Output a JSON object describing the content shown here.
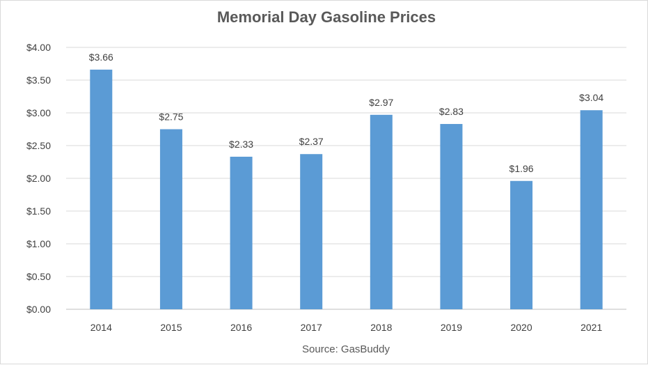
{
  "chart_data": {
    "type": "bar",
    "title": "Memorial Day Gasoline Prices",
    "source": "Source: GasBuddy",
    "categories": [
      "2014",
      "2015",
      "2016",
      "2017",
      "2018",
      "2019",
      "2020",
      "2021"
    ],
    "values": [
      3.66,
      2.75,
      2.33,
      2.37,
      2.97,
      2.83,
      1.96,
      3.04
    ],
    "data_labels": [
      "$3.66",
      "$2.75",
      "$2.33",
      "$2.37",
      "$2.97",
      "$2.83",
      "$1.96",
      "$3.04"
    ],
    "ylim": [
      0,
      4
    ],
    "y_ticks": [
      0,
      0.5,
      1,
      1.5,
      2,
      2.5,
      3,
      3.5,
      4
    ],
    "y_tick_labels": [
      "$0.00",
      "$0.50",
      "$1.00",
      "$1.50",
      "$2.00",
      "$2.50",
      "$3.00",
      "$3.50",
      "$4.00"
    ],
    "xlabel": "",
    "ylabel": "",
    "grid": true,
    "bar_color": "#5b9bd5"
  }
}
